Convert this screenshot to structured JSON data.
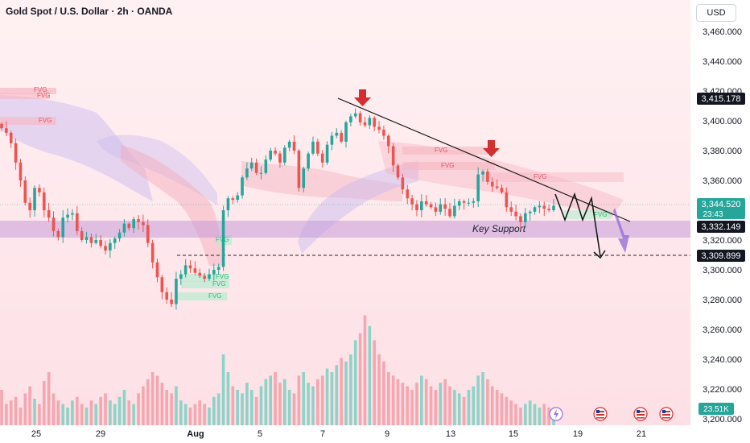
{
  "header": {
    "title": "Gold Spot / U.S. Dollar · 2h · OANDA",
    "currency_button": "USD"
  },
  "price_axis": {
    "ticks": [
      "3,460.000",
      "3,440.000",
      "3,420.000",
      "3,400.000",
      "3,380.000",
      "3,360.000",
      "3,340.000",
      "3,320.000",
      "3,300.000",
      "3,280.000",
      "3,260.000",
      "3,240.000",
      "3,220.000",
      "3,200.000"
    ],
    "tick_values": [
      3460,
      3440,
      3420,
      3400,
      3380,
      3360,
      3340,
      3320,
      3300,
      3280,
      3260,
      3240,
      3220,
      3200
    ]
  },
  "time_axis": {
    "labels": [
      "25",
      "29",
      "Aug",
      "5",
      "7",
      "9",
      "13",
      "15",
      "19",
      "21"
    ]
  },
  "price_labels": {
    "upper_target": "3,415.178",
    "current_price": "3,344.520",
    "countdown": "23:43",
    "support_price": "3,332.149",
    "lower_target": "3,309.899",
    "volume": "23.51K"
  },
  "annotations": {
    "key_support": "Key Support",
    "fvg": "FVG"
  },
  "colors": {
    "bull": "#26a69a",
    "bear": "#ef5350",
    "arrow_red": "#d32f2f",
    "support_zone": "#c49ad8",
    "projection_arrow": "#8e6ad8",
    "background_tint": "#fde3e8"
  },
  "chart_data": {
    "type": "candlestick",
    "title": "Gold Spot / U.S. Dollar · 2h · OANDA",
    "xlabel": "",
    "ylabel": "",
    "ylim": [
      3200,
      3460
    ],
    "x_ticks": [
      "25",
      "29",
      "Aug",
      "5",
      "7",
      "9",
      "13",
      "15",
      "19",
      "21"
    ],
    "key_levels": [
      {
        "value": 3415.178
      },
      {
        "value": 3344.52,
        "note": "current price"
      },
      {
        "value": 3332.149,
        "label": "Key Support"
      },
      {
        "value": 3309.899
      }
    ],
    "support_zone": {
      "from": 3323,
      "to": 3334,
      "label": "Key Support"
    },
    "trendline": {
      "from": {
        "x": "Aug 7",
        "y": 3416
      },
      "to": {
        "x": "Aug 20",
        "y": 3334
      }
    },
    "close_path": [
      3395,
      3392,
      3385,
      3372,
      3360,
      3345,
      3340,
      3355,
      3352,
      3340,
      3335,
      3326,
      3322,
      3335,
      3337,
      3338,
      3326,
      3320,
      3322,
      3318,
      3320,
      3316,
      3313,
      3318,
      3321,
      3325,
      3331,
      3328,
      3334,
      3332,
      3330,
      3318,
      3305,
      3295,
      3285,
      3280,
      3277,
      3294,
      3297,
      3303,
      3301,
      3298,
      3296,
      3294,
      3297,
      3300,
      3302,
      3340,
      3348,
      3347,
      3350,
      3362,
      3368,
      3372,
      3365,
      3365,
      3374,
      3380,
      3378,
      3372,
      3382,
      3386,
      3380,
      3355,
      3368,
      3378,
      3386,
      3378,
      3372,
      3384,
      3390,
      3392,
      3386,
      3399,
      3403,
      3405,
      3399,
      3397,
      3402,
      3396,
      3394,
      3390,
      3383,
      3370,
      3362,
      3354,
      3348,
      3344,
      3340,
      3346,
      3344,
      3342,
      3339,
      3344,
      3341,
      3336,
      3343,
      3346,
      3345,
      3345,
      3346,
      3364,
      3366,
      3359,
      3356,
      3355,
      3352,
      3342,
      3339,
      3336,
      3332,
      3338,
      3339,
      3342,
      3343,
      3341,
      3340,
      3343
    ],
    "volume_path": [
      20,
      12,
      14,
      16,
      10,
      18,
      22,
      15,
      12,
      25,
      30,
      18,
      14,
      12,
      10,
      14,
      16,
      12,
      10,
      14,
      12,
      16,
      18,
      14,
      12,
      16,
      20,
      14,
      12,
      18,
      22,
      26,
      30,
      28,
      24,
      20,
      18,
      22,
      14,
      12,
      10,
      12,
      14,
      12,
      10,
      16,
      18,
      40,
      30,
      22,
      20,
      18,
      24,
      20,
      16,
      22,
      26,
      28,
      30,
      24,
      26,
      20,
      18,
      28,
      30,
      24,
      22,
      26,
      28,
      32,
      30,
      34,
      38,
      36,
      40,
      48,
      52,
      62,
      56,
      48,
      40,
      36,
      30,
      28,
      26,
      24,
      22,
      20,
      24,
      28,
      26,
      22,
      20,
      24,
      26,
      22,
      20,
      18,
      16,
      20,
      22,
      28,
      30,
      26,
      22,
      20,
      18,
      16,
      14,
      12,
      10,
      12,
      14,
      12,
      10,
      12,
      10,
      8
    ]
  }
}
